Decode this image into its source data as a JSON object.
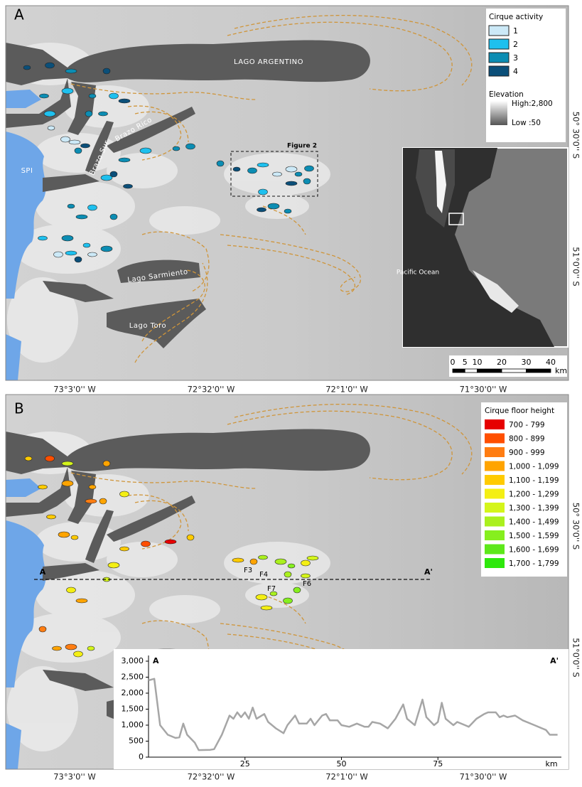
{
  "panel_a": {
    "label": "A",
    "map_labels": {
      "lago_argentino": "LAGO ARGENTINO",
      "brazo_sur": "Brazo Sur",
      "brazo_rico": "Brazo Rico",
      "spi": "SPI",
      "lago_sarmiento": "Lago Sarmiento",
      "lago_toro": "Lago Toro"
    },
    "figure2_label": "Figure 2",
    "inset_label": "Pacific Ocean",
    "legend": {
      "title": "Cirque activity",
      "items": [
        {
          "label": "1",
          "color": "#cce9f7"
        },
        {
          "label": "2",
          "color": "#1ec0ee"
        },
        {
          "label": "3",
          "color": "#0c8db3"
        },
        {
          "label": "4",
          "color": "#0b4f79"
        }
      ]
    },
    "elevation": {
      "title": "Elevation",
      "high": "High:2,800",
      "low": "Low :50"
    },
    "scale_bar": {
      "ticks": [
        0,
        5,
        10,
        20,
        30,
        40
      ],
      "unit": "km"
    },
    "lon_labels": [
      "73°3'0'' W",
      "72°32'0'' W",
      "72°1'0'' W",
      "71°30'0'' W"
    ],
    "lat_labels": [
      "50° 30'0'' S",
      "51°0'0'' S"
    ]
  },
  "panel_b": {
    "label": "B",
    "legend": {
      "title": "Cirque floor height",
      "items": [
        {
          "label": "700 - 799",
          "color": "#e60000"
        },
        {
          "label": "800 - 899",
          "color": "#ff4f00"
        },
        {
          "label": "900 - 999",
          "color": "#ff7d12"
        },
        {
          "label": "1,000 - 1,099",
          "color": "#ffa400"
        },
        {
          "label": "1,100 - 1,199",
          "color": "#ffcb00"
        },
        {
          "label": "1,200 - 1,299",
          "color": "#f4ef14"
        },
        {
          "label": "1,300 - 1,399",
          "color": "#d4f51a"
        },
        {
          "label": "1,400 - 1,499",
          "color": "#aaf01e"
        },
        {
          "label": "1,500 - 1,599",
          "color": "#86ef1e"
        },
        {
          "label": "1,600 - 1,699",
          "color": "#5de81a"
        },
        {
          "label": "1,700 - 1,799",
          "color": "#2ee80c"
        }
      ]
    },
    "transect": {
      "start": "A",
      "end": "A'"
    },
    "site_labels": [
      "F3",
      "F4",
      "F6",
      "F7"
    ],
    "lon_labels": [
      "73°3'0'' W",
      "72°32'0'' W",
      "72°1'0'' W",
      "71°30'0'' W"
    ],
    "lat_labels": [
      "50° 30'0'' S",
      "51°0'0'' S"
    ]
  },
  "chart_data": {
    "type": "line",
    "start_label": "A",
    "end_label": "A'",
    "x_label": "km",
    "x": [
      0,
      1.5,
      3,
      5,
      7,
      8,
      9,
      10,
      12,
      13,
      16,
      17,
      19,
      21,
      22,
      23,
      24,
      25,
      26,
      27,
      28,
      30,
      31,
      33,
      35,
      36,
      38,
      39,
      41,
      42,
      43,
      45,
      46,
      47,
      49,
      50,
      52,
      54,
      56,
      57,
      58,
      60,
      62,
      64,
      66,
      67,
      69,
      70,
      71,
      72,
      74,
      75,
      76,
      77,
      79,
      80,
      82,
      83,
      85,
      87,
      88,
      90,
      91,
      92,
      93,
      95,
      97,
      100,
      103,
      104,
      106
    ],
    "series": [
      {
        "color": "#a6a6a6",
        "values": [
          2400,
          2450,
          1000,
          700,
          600,
          620,
          1050,
          700,
          450,
          220,
          230,
          250,
          700,
          1300,
          1200,
          1400,
          1250,
          1400,
          1200,
          1550,
          1200,
          1350,
          1100,
          900,
          750,
          1000,
          1300,
          1050,
          1050,
          1200,
          1000,
          1300,
          1350,
          1150,
          1150,
          1000,
          950,
          1050,
          950,
          950,
          1100,
          1050,
          900,
          1200,
          1650,
          1200,
          1000,
          1400,
          1800,
          1250,
          1000,
          1100,
          1700,
          1200,
          1000,
          1100,
          1000,
          950,
          1200,
          1350,
          1400,
          1400,
          1250,
          1300,
          1250,
          1300,
          1150,
          1000,
          850,
          700,
          700
        ]
      }
    ],
    "xlim": [
      0,
      107
    ],
    "ylim": [
      0,
      3000
    ],
    "xticks": [
      25,
      50,
      75
    ],
    "yticks": [
      0,
      500,
      {
        "value": 1000,
        "label": "1,000"
      },
      {
        "value": 1500,
        "label": "1,500"
      },
      {
        "value": 2000,
        "label": "2,000"
      },
      {
        "value": 2500,
        "label": "2,500"
      },
      {
        "value": 3000,
        "label": "3,000"
      }
    ]
  }
}
